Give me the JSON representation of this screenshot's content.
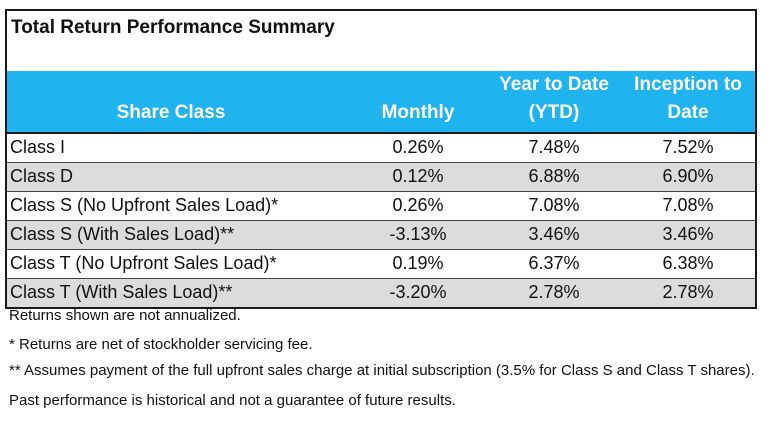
{
  "title": "Total Return Performance Summary",
  "columns": [
    "Share Class",
    "Monthly",
    "Year to Date (YTD)",
    "Inception to Date"
  ],
  "header_lines": {
    "share_class": "Share Class",
    "monthly": "Monthly",
    "ytd_line1": "Year to Date",
    "ytd_line2": "(YTD)",
    "itd_line1": "Inception to",
    "itd_line2": "Date"
  },
  "rows": [
    {
      "name": "Class I",
      "monthly": "0.26%",
      "ytd": "7.48%",
      "itd": "7.52%"
    },
    {
      "name": "Class D",
      "monthly": "0.12%",
      "ytd": "6.88%",
      "itd": "6.90%"
    },
    {
      "name": "Class S (No Upfront Sales Load)*",
      "monthly": "0.26%",
      "ytd": "7.08%",
      "itd": "7.08%"
    },
    {
      "name": "Class S (With Sales Load)**",
      "monthly": "-3.13%",
      "ytd": "3.46%",
      "itd": "3.46%"
    },
    {
      "name": "Class T (No Upfront Sales Load)*",
      "monthly": "0.19%",
      "ytd": "6.37%",
      "itd": "6.38%"
    },
    {
      "name": "Class T (With Sales Load)**",
      "monthly": "-3.20%",
      "ytd": "2.78%",
      "itd": "2.78%"
    }
  ],
  "notes": {
    "not_annualized": "Returns shown are not annualized.",
    "footnote_1": "* Returns are net of stockholder servicing fee.",
    "footnote_2": "** Assumes payment of the full upfront sales charge at initial subscription (3.5% for Class S and Class T shares).",
    "disclaimer": "Past performance is historical and not a guarantee of future results."
  },
  "colors": {
    "header_bg": "#1fb3ef",
    "header_text": "#ffffff",
    "stripe_bg": "#dcdcdc",
    "border": "#1a1a1a"
  }
}
